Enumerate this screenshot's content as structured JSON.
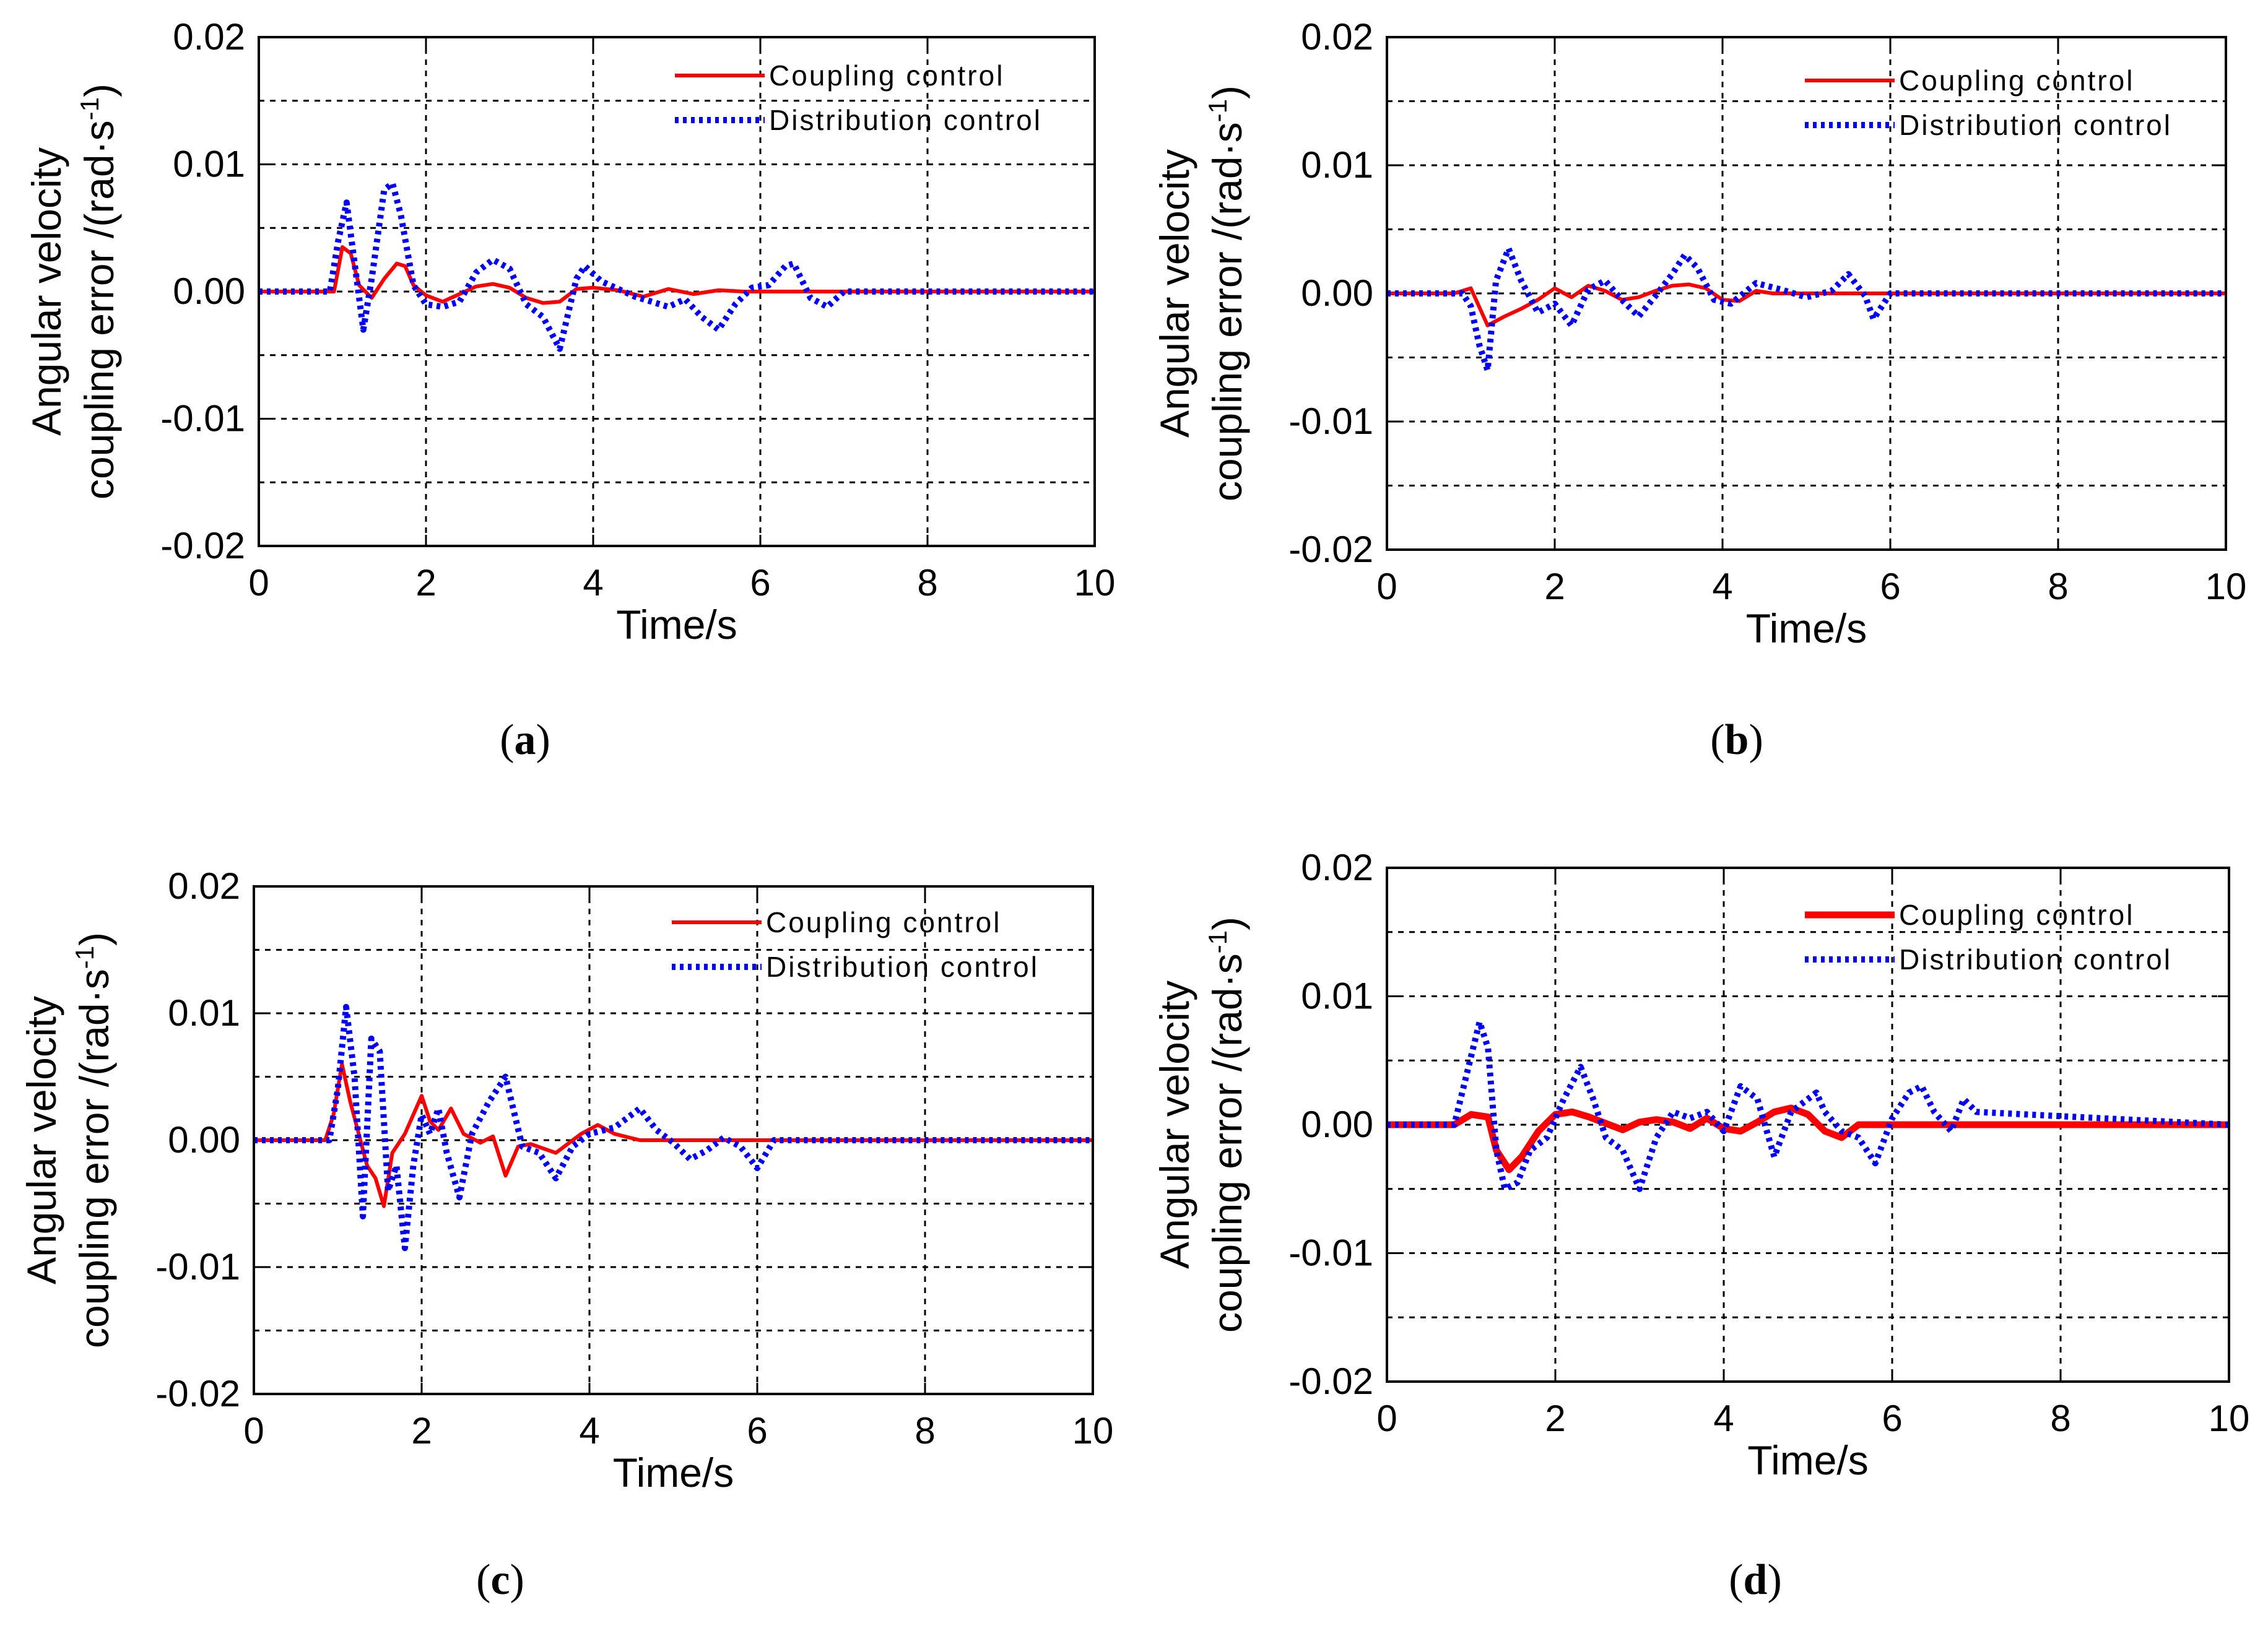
{
  "chart_data": [
    {
      "panel": "a",
      "type": "line",
      "caption_label": "a",
      "xlabel": "Time/s",
      "ylabel_line1": "Angular velocity",
      "ylabel_line2": "coupling error /(rad·s",
      "ylabel_sup": "-1",
      "ylabel_end": ")",
      "xlim": [
        0,
        10
      ],
      "ylim": [
        -0.02,
        0.02
      ],
      "xticks": [
        "0",
        "2",
        "4",
        "6",
        "8",
        "10"
      ],
      "yticks": [
        "-0.02",
        "-0.01",
        "0.00",
        "0.01",
        "0.02"
      ],
      "series": [
        {
          "name": "Coupling control",
          "color": "#ff0000",
          "style": "solid",
          "x": [
            0,
            0.9,
            1.0,
            1.1,
            1.2,
            1.35,
            1.5,
            1.65,
            1.75,
            1.85,
            2.0,
            2.2,
            2.4,
            2.6,
            2.8,
            3.0,
            3.2,
            3.4,
            3.6,
            3.8,
            4.0,
            4.3,
            4.6,
            4.9,
            5.2,
            5.5,
            5.8,
            10
          ],
          "y": [
            0,
            0,
            0.0035,
            0.003,
            0.0005,
            -0.0005,
            0.001,
            0.0022,
            0.002,
            0.0005,
            -0.0003,
            -0.0008,
            -0.0002,
            0.0004,
            0.0006,
            0.0003,
            -0.0005,
            -0.0009,
            -0.0008,
            0.0002,
            0.0003,
            0.0001,
            -0.0004,
            0.0002,
            -0.0002,
            0.0001,
            0,
            0
          ]
        },
        {
          "name": "Distribution control",
          "color": "#0000ff",
          "style": "dotted",
          "x": [
            0,
            0.85,
            0.95,
            1.05,
            1.15,
            1.25,
            1.35,
            1.5,
            1.6,
            1.7,
            1.85,
            2.0,
            2.2,
            2.4,
            2.6,
            2.8,
            3.0,
            3.2,
            3.4,
            3.6,
            3.8,
            3.9,
            4.1,
            4.3,
            4.5,
            4.7,
            4.9,
            5.1,
            5.3,
            5.5,
            5.7,
            5.9,
            6.1,
            6.3,
            6.4,
            6.6,
            6.8,
            7.0,
            10
          ],
          "y": [
            0,
            0,
            0.004,
            0.007,
            0.002,
            -0.003,
            0.001,
            0.008,
            0.0085,
            0.006,
            0.0005,
            -0.001,
            -0.0012,
            -0.0008,
            0.0015,
            0.0025,
            0.0018,
            -0.001,
            -0.002,
            -0.0045,
            0.001,
            0.002,
            0.0008,
            0.0002,
            -0.0004,
            -0.0008,
            -0.0012,
            -0.0006,
            -0.002,
            -0.003,
            -0.001,
            0.0003,
            0.0005,
            0.002,
            0.0022,
            -0.0005,
            -0.0012,
            0,
            0
          ]
        }
      ]
    },
    {
      "panel": "b",
      "type": "line",
      "caption_label": "b",
      "xlabel": "Time/s",
      "ylabel_line1": "Angular velocity",
      "ylabel_line2": "coupling error /(rad·s",
      "ylabel_sup": "-1",
      "ylabel_end": ")",
      "xlim": [
        0,
        10
      ],
      "ylim": [
        -0.02,
        0.02
      ],
      "xticks": [
        "0",
        "2",
        "4",
        "6",
        "8",
        "10"
      ],
      "yticks": [
        "-0.02",
        "-0.01",
        "0.00",
        "0.01",
        "0.02"
      ],
      "series": [
        {
          "name": "Coupling control",
          "color": "#ff0000",
          "style": "solid",
          "x": [
            0,
            0.8,
            1.0,
            1.2,
            1.4,
            1.6,
            1.8,
            2.0,
            2.2,
            2.4,
            2.6,
            2.8,
            3.0,
            3.2,
            3.4,
            3.6,
            3.8,
            4.0,
            4.2,
            4.4,
            4.6,
            10
          ],
          "y": [
            0,
            0,
            0.0004,
            -0.0025,
            -0.0018,
            -0.0012,
            -0.0005,
            0.0004,
            -0.0003,
            0.0006,
            0.0002,
            -0.0005,
            -0.0003,
            0.0002,
            0.0006,
            0.0007,
            0.0004,
            -0.0005,
            -0.0006,
            0.0002,
            0,
            0
          ]
        },
        {
          "name": "Distribution control",
          "color": "#0000ff",
          "style": "dotted",
          "x": [
            0,
            0.9,
            1.0,
            1.1,
            1.2,
            1.3,
            1.45,
            1.6,
            1.8,
            2.0,
            2.2,
            2.4,
            2.6,
            2.8,
            3.0,
            3.2,
            3.4,
            3.55,
            3.7,
            3.9,
            4.1,
            4.4,
            4.7,
            5.0,
            5.3,
            5.5,
            5.7,
            5.8,
            6.0,
            10
          ],
          "y": [
            0,
            0,
            -0.001,
            -0.004,
            -0.006,
            0.001,
            0.0035,
            0.001,
            -0.0015,
            -0.0008,
            -0.0025,
            0.0003,
            0.001,
            -0.0005,
            -0.0018,
            -0.0002,
            0.0015,
            0.003,
            0.002,
            -0.0005,
            -0.0008,
            0.0008,
            0.0003,
            -0.0003,
            0.0002,
            0.0015,
            -0.0002,
            -0.002,
            0,
            0
          ]
        }
      ]
    },
    {
      "panel": "c",
      "type": "line",
      "caption_label": "c",
      "xlabel": "Time/s",
      "ylabel_line1": "Angular velocity",
      "ylabel_line2": "coupling error /(rad·s",
      "ylabel_sup": "-1",
      "ylabel_end": ")",
      "xlim": [
        0,
        10
      ],
      "ylim": [
        -0.02,
        0.02
      ],
      "xticks": [
        "0",
        "2",
        "4",
        "6",
        "8",
        "10"
      ],
      "yticks": [
        "-0.02",
        "-0.01",
        "0.00",
        "0.01",
        "0.02"
      ],
      "series": [
        {
          "name": "Coupling control",
          "color": "#ff0000",
          "style": "solid",
          "x": [
            0,
            0.85,
            0.95,
            1.05,
            1.15,
            1.25,
            1.35,
            1.45,
            1.55,
            1.65,
            1.8,
            2.0,
            2.1,
            2.2,
            2.35,
            2.5,
            2.7,
            2.85,
            3.0,
            3.15,
            3.3,
            3.6,
            3.9,
            4.1,
            4.3,
            4.6,
            10
          ],
          "y": [
            0,
            0,
            0.002,
            0.006,
            0.003,
            0.0005,
            -0.002,
            -0.003,
            -0.0052,
            -0.001,
            0.0005,
            0.0035,
            0.0015,
            0.0008,
            0.0025,
            0.0005,
            -0.0002,
            0.0003,
            -0.0028,
            -0.0005,
            -0.0003,
            -0.001,
            0.0005,
            0.0012,
            0.0005,
            0,
            0
          ]
        },
        {
          "name": "Distribution control",
          "color": "#0000ff",
          "style": "dotted",
          "x": [
            0,
            0.9,
            1.0,
            1.1,
            1.2,
            1.3,
            1.4,
            1.5,
            1.6,
            1.7,
            1.8,
            1.9,
            2.0,
            2.1,
            2.2,
            2.3,
            2.45,
            2.6,
            2.8,
            3.0,
            3.2,
            3.4,
            3.6,
            3.8,
            4.0,
            4.3,
            4.6,
            4.8,
            5.0,
            5.2,
            5.4,
            5.6,
            5.8,
            6.0,
            6.2,
            10
          ],
          "y": [
            0,
            0,
            0.004,
            0.0105,
            0.005,
            -0.006,
            0.008,
            0.007,
            -0.004,
            -0.002,
            -0.0085,
            -0.002,
            0.002,
            0.0005,
            0.0025,
            -0.001,
            -0.0045,
            0.0005,
            0.003,
            0.005,
            -0.0005,
            -0.001,
            -0.003,
            -0.0005,
            0.0005,
            0.001,
            0.0025,
            0.0008,
            -0.0002,
            -0.0015,
            -0.0008,
            0.0002,
            -0.0005,
            -0.0022,
            0,
            0
          ]
        }
      ]
    },
    {
      "panel": "d",
      "type": "line",
      "caption_label": "d",
      "xlabel": "Time/s",
      "ylabel_line1": "Angular velocity",
      "ylabel_line2": "coupling error /(rad·s",
      "ylabel_sup": "-1",
      "ylabel_end": ")",
      "xlim": [
        0,
        10
      ],
      "ylim": [
        -0.02,
        0.02
      ],
      "xticks": [
        "0",
        "2",
        "4",
        "6",
        "8",
        "10"
      ],
      "yticks": [
        "-0.02",
        "-0.01",
        "0.00",
        "0.01",
        "0.02"
      ],
      "series": [
        {
          "name": "Coupling control",
          "color": "#ff0000",
          "style": "solid",
          "x": [
            0,
            0.8,
            1.0,
            1.2,
            1.3,
            1.45,
            1.6,
            1.8,
            2.0,
            2.2,
            2.4,
            2.6,
            2.8,
            3.0,
            3.2,
            3.4,
            3.6,
            3.8,
            4.0,
            4.2,
            4.4,
            4.6,
            4.8,
            5.0,
            5.2,
            5.4,
            5.6,
            10
          ],
          "y": [
            0,
            0,
            0.0008,
            0.0006,
            -0.002,
            -0.0035,
            -0.0025,
            -0.0005,
            0.0008,
            0.001,
            0.0006,
            0.0001,
            -0.0004,
            0.0002,
            0.0004,
            0.0002,
            -0.0003,
            0.0005,
            -0.0003,
            -0.0005,
            0.0002,
            0.001,
            0.0013,
            0.0008,
            -0.0005,
            -0.001,
            0,
            0
          ]
        },
        {
          "name": "Distribution control",
          "color": "#0000ff",
          "style": "dotted",
          "x": [
            0,
            0.8,
            0.95,
            1.1,
            1.2,
            1.3,
            1.4,
            1.55,
            1.7,
            1.9,
            2.1,
            2.3,
            2.45,
            2.6,
            2.8,
            3.0,
            3.2,
            3.4,
            3.6,
            3.8,
            4.0,
            4.2,
            4.4,
            4.6,
            4.8,
            5.0,
            5.1,
            5.2,
            5.4,
            5.6,
            5.8,
            6.0,
            6.2,
            6.35,
            6.5,
            6.7,
            6.85,
            7.0,
            10
          ],
          "y": [
            0,
            0,
            0.004,
            0.008,
            0.006,
            -0.002,
            -0.005,
            -0.0045,
            -0.002,
            -0.001,
            0.002,
            0.0045,
            0.002,
            -0.001,
            -0.002,
            -0.005,
            -0.001,
            0.001,
            0.0005,
            0.001,
            -0.0005,
            0.003,
            0.002,
            -0.0025,
            0.001,
            0.002,
            0.0025,
            0.001,
            -0.0005,
            -0.001,
            -0.003,
            0.0005,
            0.0025,
            0.003,
            0.001,
            -0.0005,
            0.002,
            0.001,
            0
          ]
        }
      ]
    }
  ]
}
